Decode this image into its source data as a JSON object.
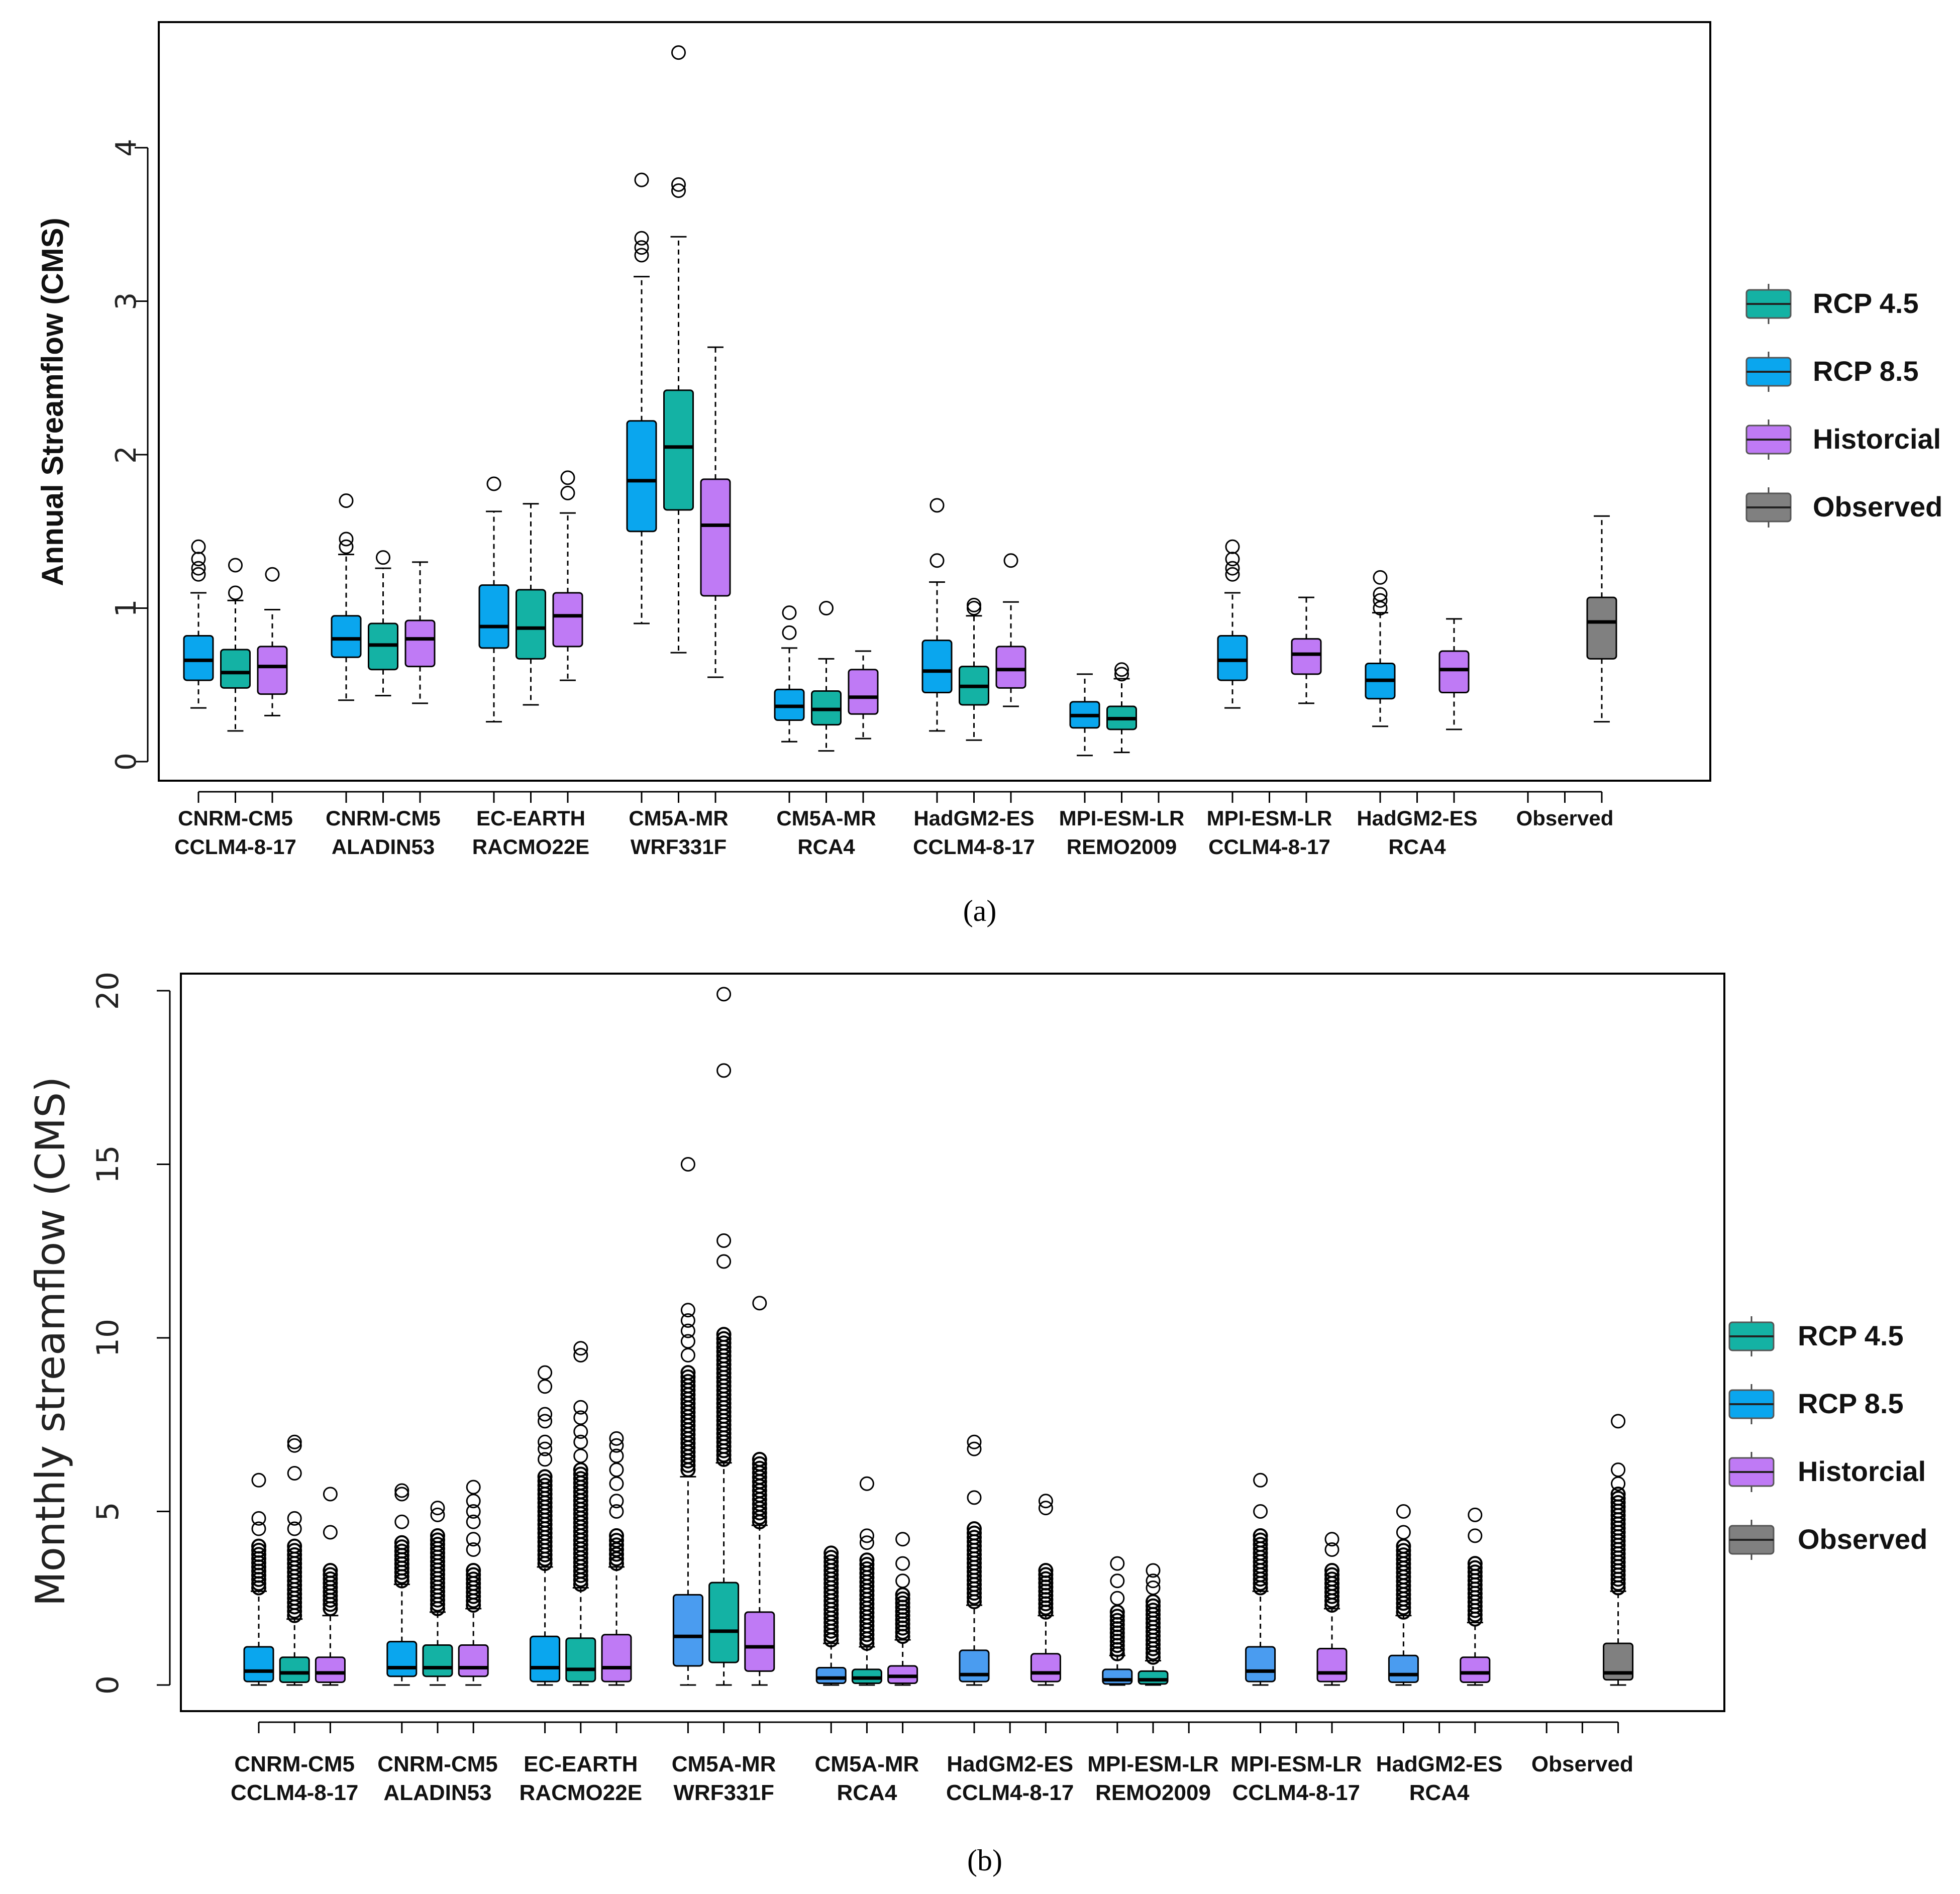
{
  "colors": {
    "rcp45": "#14b2a4",
    "rcp85": "#0aa6ee",
    "rcp85_monthly": "#4a9cf0",
    "historical": "#bf7af5",
    "observed": "#808080"
  },
  "legend": {
    "items": [
      {
        "key": "rcp45",
        "label": "RCP 4.5"
      },
      {
        "key": "rcp85",
        "label": "RCP 8.5"
      },
      {
        "key": "historical",
        "label": "Historcial"
      },
      {
        "key": "observed",
        "label": "Observed"
      }
    ]
  },
  "chart_data": [
    {
      "type": "box",
      "panel_label": "(a)",
      "ylabel": "Annual Streamflow (CMS)",
      "ylim": [
        0,
        4.7
      ],
      "yticks": [
        0,
        1,
        2,
        3,
        4
      ],
      "groups": [
        {
          "label": [
            "CNRM-CM5",
            "CCLM4-8-17"
          ],
          "positions": [
            1,
            2,
            3
          ]
        },
        {
          "label": [
            "CNRM-CM5",
            "ALADIN53"
          ],
          "positions": [
            5,
            6,
            7
          ]
        },
        {
          "label": [
            "EC-EARTH",
            "RACMO22E"
          ],
          "positions": [
            9,
            10,
            11
          ]
        },
        {
          "label": [
            "CM5A-MR",
            "WRF331F"
          ],
          "positions": [
            13,
            14,
            15
          ]
        },
        {
          "label": [
            "CM5A-MR",
            "RCA4"
          ],
          "positions": [
            17,
            18,
            19
          ]
        },
        {
          "label": [
            "HadGM2-ES",
            "CCLM4-8-17"
          ],
          "positions": [
            21,
            22,
            23
          ]
        },
        {
          "label": [
            "MPI-ESM-LR",
            "REMO2009"
          ],
          "positions": [
            25,
            26,
            27
          ]
        },
        {
          "label": [
            "MPI-ESM-LR",
            "CCLM4-8-17"
          ],
          "positions": [
            29,
            30,
            31
          ]
        },
        {
          "label": [
            "HadGM2-ES",
            "RCA4"
          ],
          "positions": [
            33,
            34,
            35
          ]
        },
        {
          "label": [
            "Observed"
          ],
          "positions": [
            37,
            38,
            39
          ]
        }
      ],
      "boxes": [
        {
          "pos": 1,
          "series": "rcp85",
          "whislo": 0.35,
          "q1": 0.53,
          "med": 0.66,
          "q3": 0.82,
          "whishi": 1.1,
          "fliers": [
            1.22,
            1.26,
            1.32,
            1.4
          ]
        },
        {
          "pos": 2,
          "series": "rcp45",
          "whislo": 0.2,
          "q1": 0.48,
          "med": 0.58,
          "q3": 0.73,
          "whishi": 1.05,
          "fliers": [
            1.1,
            1.28
          ]
        },
        {
          "pos": 3,
          "series": "historical",
          "whislo": 0.3,
          "q1": 0.44,
          "med": 0.62,
          "q3": 0.75,
          "whishi": 0.99,
          "fliers": [
            1.22
          ]
        },
        {
          "pos": 5,
          "series": "rcp85",
          "whislo": 0.4,
          "q1": 0.68,
          "med": 0.8,
          "q3": 0.95,
          "whishi": 1.35,
          "fliers": [
            1.4,
            1.45,
            1.7
          ]
        },
        {
          "pos": 6,
          "series": "rcp45",
          "whislo": 0.43,
          "q1": 0.6,
          "med": 0.76,
          "q3": 0.9,
          "whishi": 1.26,
          "fliers": [
            1.33
          ]
        },
        {
          "pos": 7,
          "series": "historical",
          "whislo": 0.38,
          "q1": 0.62,
          "med": 0.8,
          "q3": 0.92,
          "whishi": 1.3,
          "fliers": []
        },
        {
          "pos": 9,
          "series": "rcp85",
          "whislo": 0.26,
          "q1": 0.74,
          "med": 0.88,
          "q3": 1.15,
          "whishi": 1.63,
          "fliers": [
            1.81
          ]
        },
        {
          "pos": 10,
          "series": "rcp45",
          "whislo": 0.37,
          "q1": 0.67,
          "med": 0.87,
          "q3": 1.12,
          "whishi": 1.68,
          "fliers": []
        },
        {
          "pos": 11,
          "series": "historical",
          "whislo": 0.53,
          "q1": 0.75,
          "med": 0.95,
          "q3": 1.1,
          "whishi": 1.62,
          "fliers": [
            1.75,
            1.85
          ]
        },
        {
          "pos": 13,
          "series": "rcp85",
          "whislo": 0.9,
          "q1": 1.5,
          "med": 1.83,
          "q3": 2.22,
          "whishi": 3.16,
          "fliers": [
            3.3,
            3.35,
            3.41,
            3.79
          ]
        },
        {
          "pos": 14,
          "series": "rcp45",
          "whislo": 0.71,
          "q1": 1.64,
          "med": 2.05,
          "q3": 2.42,
          "whishi": 3.42,
          "fliers": [
            3.72,
            3.76,
            4.62
          ]
        },
        {
          "pos": 15,
          "series": "historical",
          "whislo": 0.55,
          "q1": 1.08,
          "med": 1.54,
          "q3": 1.84,
          "whishi": 2.7,
          "fliers": []
        },
        {
          "pos": 17,
          "series": "rcp85",
          "whislo": 0.13,
          "q1": 0.27,
          "med": 0.36,
          "q3": 0.47,
          "whishi": 0.74,
          "fliers": [
            0.84,
            0.97
          ]
        },
        {
          "pos": 18,
          "series": "rcp45",
          "whislo": 0.07,
          "q1": 0.24,
          "med": 0.34,
          "q3": 0.46,
          "whishi": 0.67,
          "fliers": [
            1.0
          ]
        },
        {
          "pos": 19,
          "series": "historical",
          "whislo": 0.15,
          "q1": 0.31,
          "med": 0.42,
          "q3": 0.6,
          "whishi": 0.72,
          "fliers": []
        },
        {
          "pos": 21,
          "series": "rcp85",
          "whislo": 0.2,
          "q1": 0.45,
          "med": 0.59,
          "q3": 0.79,
          "whishi": 1.17,
          "fliers": [
            1.31,
            1.67
          ]
        },
        {
          "pos": 22,
          "series": "rcp45",
          "whislo": 0.14,
          "q1": 0.37,
          "med": 0.49,
          "q3": 0.62,
          "whishi": 0.95,
          "fliers": [
            1.0,
            1.02
          ]
        },
        {
          "pos": 23,
          "series": "historical",
          "whislo": 0.36,
          "q1": 0.48,
          "med": 0.6,
          "q3": 0.75,
          "whishi": 1.04,
          "fliers": [
            1.31
          ]
        },
        {
          "pos": 25,
          "series": "rcp85",
          "whislo": 0.04,
          "q1": 0.22,
          "med": 0.3,
          "q3": 0.39,
          "whishi": 0.57,
          "fliers": []
        },
        {
          "pos": 26,
          "series": "rcp45",
          "whislo": 0.06,
          "q1": 0.21,
          "med": 0.28,
          "q3": 0.36,
          "whishi": 0.54,
          "fliers": [
            0.57,
            0.6
          ]
        },
        {
          "pos": 29,
          "series": "rcp85",
          "whislo": 0.35,
          "q1": 0.53,
          "med": 0.66,
          "q3": 0.82,
          "whishi": 1.1,
          "fliers": [
            1.22,
            1.26,
            1.32,
            1.4
          ]
        },
        {
          "pos": 31,
          "series": "historical",
          "whislo": 0.38,
          "q1": 0.57,
          "med": 0.7,
          "q3": 0.8,
          "whishi": 1.07,
          "fliers": []
        },
        {
          "pos": 33,
          "series": "rcp85",
          "whislo": 0.23,
          "q1": 0.41,
          "med": 0.53,
          "q3": 0.64,
          "whishi": 0.97,
          "fliers": [
            1.0,
            1.05,
            1.09,
            1.2
          ]
        },
        {
          "pos": 35,
          "series": "historical",
          "whislo": 0.21,
          "q1": 0.45,
          "med": 0.6,
          "q3": 0.72,
          "whishi": 0.93,
          "fliers": []
        },
        {
          "pos": 39,
          "series": "observed",
          "whislo": 0.26,
          "q1": 0.67,
          "med": 0.91,
          "q3": 1.07,
          "whishi": 1.6,
          "fliers": []
        }
      ]
    },
    {
      "type": "box",
      "panel_label": "(b)",
      "ylabel": "Monthly streamflow (CMS)",
      "ylim": [
        0,
        20.5
      ],
      "yticks": [
        0,
        5,
        10,
        15,
        20
      ],
      "groups": [
        {
          "label": [
            "CNRM-CM5",
            "CCLM4-8-17"
          ],
          "positions": [
            1,
            2,
            3
          ]
        },
        {
          "label": [
            "CNRM-CM5",
            "ALADIN53"
          ],
          "positions": [
            5,
            6,
            7
          ]
        },
        {
          "label": [
            "EC-EARTH",
            "RACMO22E"
          ],
          "positions": [
            9,
            10,
            11
          ]
        },
        {
          "label": [
            "CM5A-MR",
            "WRF331F"
          ],
          "positions": [
            13,
            14,
            15
          ]
        },
        {
          "label": [
            "CM5A-MR",
            "RCA4"
          ],
          "positions": [
            17,
            18,
            19
          ]
        },
        {
          "label": [
            "HadGM2-ES",
            "CCLM4-8-17"
          ],
          "positions": [
            21,
            22,
            23
          ]
        },
        {
          "label": [
            "MPI-ESM-LR",
            "REMO2009"
          ],
          "positions": [
            25,
            26,
            27
          ]
        },
        {
          "label": [
            "MPI-ESM-LR",
            "CCLM4-8-17"
          ],
          "positions": [
            29,
            30,
            31
          ]
        },
        {
          "label": [
            "HadGM2-ES",
            "RCA4"
          ],
          "positions": [
            33,
            34,
            35
          ]
        },
        {
          "label": [
            "Observed"
          ],
          "positions": [
            37,
            38,
            39
          ]
        }
      ],
      "boxes": [
        {
          "pos": 1,
          "series": "rcp85",
          "whislo": 0.0,
          "q1": 0.1,
          "med": 0.4,
          "q3": 1.1,
          "whishi": 2.7,
          "fliers_band": [
            2.8,
            4.0
          ],
          "fliers": [
            4.5,
            4.8,
            5.9
          ]
        },
        {
          "pos": 2,
          "series": "rcp45",
          "whislo": 0.0,
          "q1": 0.08,
          "med": 0.35,
          "q3": 0.8,
          "whishi": 1.9,
          "fliers_band": [
            2.0,
            4.0
          ],
          "fliers": [
            4.5,
            4.8,
            6.1,
            6.9,
            7.0
          ]
        },
        {
          "pos": 3,
          "series": "historical",
          "whislo": 0.0,
          "q1": 0.08,
          "med": 0.35,
          "q3": 0.8,
          "whishi": 2.0,
          "fliers_band": [
            2.2,
            3.3
          ],
          "fliers": [
            4.4,
            5.5
          ]
        },
        {
          "pos": 5,
          "series": "rcp85",
          "whislo": 0.0,
          "q1": 0.25,
          "med": 0.5,
          "q3": 1.25,
          "whishi": 2.9,
          "fliers_band": [
            3.0,
            4.1
          ],
          "fliers": [
            4.7,
            5.5,
            5.6
          ]
        },
        {
          "pos": 6,
          "series": "rcp45",
          "whislo": 0.0,
          "q1": 0.25,
          "med": 0.5,
          "q3": 1.15,
          "whishi": 2.1,
          "fliers_band": [
            2.2,
            4.3
          ],
          "fliers": [
            4.9,
            5.1
          ]
        },
        {
          "pos": 7,
          "series": "historical",
          "whislo": 0.0,
          "q1": 0.25,
          "med": 0.5,
          "q3": 1.15,
          "whishi": 2.2,
          "fliers_band": [
            2.3,
            3.3
          ],
          "fliers": [
            3.9,
            4.2,
            4.7,
            5.0,
            5.3,
            5.7
          ]
        },
        {
          "pos": 9,
          "series": "rcp85",
          "whislo": 0.0,
          "q1": 0.1,
          "med": 0.5,
          "q3": 1.4,
          "whishi": 3.4,
          "fliers_band": [
            3.5,
            6.0
          ],
          "fliers": [
            6.5,
            6.8,
            7.0,
            7.6,
            7.8,
            8.6,
            9.0
          ]
        },
        {
          "pos": 10,
          "series": "rcp45",
          "whislo": 0.0,
          "q1": 0.1,
          "med": 0.45,
          "q3": 1.35,
          "whishi": 2.8,
          "fliers_band": [
            2.9,
            6.2
          ],
          "fliers": [
            6.6,
            7.0,
            7.3,
            7.7,
            8.0,
            9.5,
            9.7
          ]
        },
        {
          "pos": 11,
          "series": "historical",
          "whislo": 0.0,
          "q1": 0.1,
          "med": 0.5,
          "q3": 1.45,
          "whishi": 3.4,
          "fliers_band": [
            3.5,
            4.3
          ],
          "fliers": [
            5.0,
            5.3,
            5.8,
            6.2,
            6.6,
            6.9,
            7.1
          ]
        },
        {
          "pos": 13,
          "series": "rcp85_monthly",
          "whislo": 0.0,
          "q1": 0.55,
          "med": 1.4,
          "q3": 2.6,
          "whishi": 6.0,
          "fliers_band": [
            6.2,
            9.0
          ],
          "fliers": [
            9.5,
            9.9,
            10.2,
            10.5,
            10.8,
            15.0
          ]
        },
        {
          "pos": 14,
          "series": "rcp45",
          "whislo": 0.0,
          "q1": 0.65,
          "med": 1.55,
          "q3": 2.95,
          "whishi": 6.4,
          "fliers_band": [
            6.5,
            10.1
          ],
          "fliers": [
            12.2,
            12.8,
            17.7,
            19.9
          ]
        },
        {
          "pos": 15,
          "series": "historical",
          "whislo": 0.0,
          "q1": 0.4,
          "med": 1.1,
          "q3": 2.1,
          "whishi": 4.6,
          "fliers_band": [
            4.7,
            6.5
          ],
          "fliers": [
            11.0
          ]
        },
        {
          "pos": 17,
          "series": "rcp85_monthly",
          "whislo": 0.0,
          "q1": 0.05,
          "med": 0.2,
          "q3": 0.5,
          "whishi": 1.2,
          "fliers_band": [
            1.3,
            3.8
          ],
          "fliers": []
        },
        {
          "pos": 18,
          "series": "rcp45",
          "whislo": 0.0,
          "q1": 0.05,
          "med": 0.2,
          "q3": 0.45,
          "whishi": 1.1,
          "fliers_band": [
            1.2,
            3.6
          ],
          "fliers": [
            4.1,
            4.3,
            5.8
          ]
        },
        {
          "pos": 19,
          "series": "historical",
          "whislo": 0.0,
          "q1": 0.05,
          "med": 0.25,
          "q3": 0.55,
          "whishi": 1.3,
          "fliers_band": [
            1.4,
            2.6
          ],
          "fliers": [
            3.0,
            3.5,
            4.2
          ]
        },
        {
          "pos": 21,
          "series": "rcp85_monthly",
          "whislo": 0.0,
          "q1": 0.1,
          "med": 0.3,
          "q3": 1.0,
          "whishi": 2.3,
          "fliers_band": [
            2.4,
            4.5
          ],
          "fliers": [
            5.4,
            6.8,
            7.0
          ]
        },
        {
          "pos": 23,
          "series": "historical",
          "whislo": 0.0,
          "q1": 0.1,
          "med": 0.35,
          "q3": 0.9,
          "whishi": 2.0,
          "fliers_band": [
            2.1,
            3.3
          ],
          "fliers": [
            5.1,
            5.3
          ]
        },
        {
          "pos": 25,
          "series": "rcp85_monthly",
          "whislo": 0.0,
          "q1": 0.03,
          "med": 0.15,
          "q3": 0.45,
          "whishi": 0.85,
          "fliers_band": [
            0.9,
            2.1
          ],
          "fliers": [
            2.5,
            3.0,
            3.5
          ]
        },
        {
          "pos": 26,
          "series": "rcp45",
          "whislo": 0.0,
          "q1": 0.03,
          "med": 0.15,
          "q3": 0.4,
          "whishi": 0.7,
          "fliers_band": [
            0.8,
            2.4
          ],
          "fliers": [
            2.8,
            3.0,
            3.3
          ]
        },
        {
          "pos": 29,
          "series": "rcp85_monthly",
          "whislo": 0.0,
          "q1": 0.1,
          "med": 0.4,
          "q3": 1.1,
          "whishi": 2.7,
          "fliers_band": [
            2.8,
            4.3
          ],
          "fliers": [
            5.0,
            5.9
          ]
        },
        {
          "pos": 31,
          "series": "historical",
          "whislo": 0.0,
          "q1": 0.1,
          "med": 0.35,
          "q3": 1.05,
          "whishi": 2.2,
          "fliers_band": [
            2.3,
            3.3
          ],
          "fliers": [
            3.9,
            4.2
          ]
        },
        {
          "pos": 33,
          "series": "rcp85_monthly",
          "whislo": 0.0,
          "q1": 0.08,
          "med": 0.3,
          "q3": 0.85,
          "whishi": 2.0,
          "fliers_band": [
            2.1,
            4.0
          ],
          "fliers": [
            4.4,
            5.0
          ]
        },
        {
          "pos": 35,
          "series": "historical",
          "whislo": 0.0,
          "q1": 0.08,
          "med": 0.35,
          "q3": 0.8,
          "whishi": 1.8,
          "fliers_band": [
            1.9,
            3.5
          ],
          "fliers": [
            4.3,
            4.9
          ]
        },
        {
          "pos": 39,
          "series": "observed",
          "whislo": 0.0,
          "q1": 0.15,
          "med": 0.35,
          "q3": 1.2,
          "whishi": 2.7,
          "fliers_band": [
            2.8,
            5.5
          ],
          "fliers": [
            5.8,
            6.2,
            7.6
          ]
        }
      ]
    }
  ]
}
